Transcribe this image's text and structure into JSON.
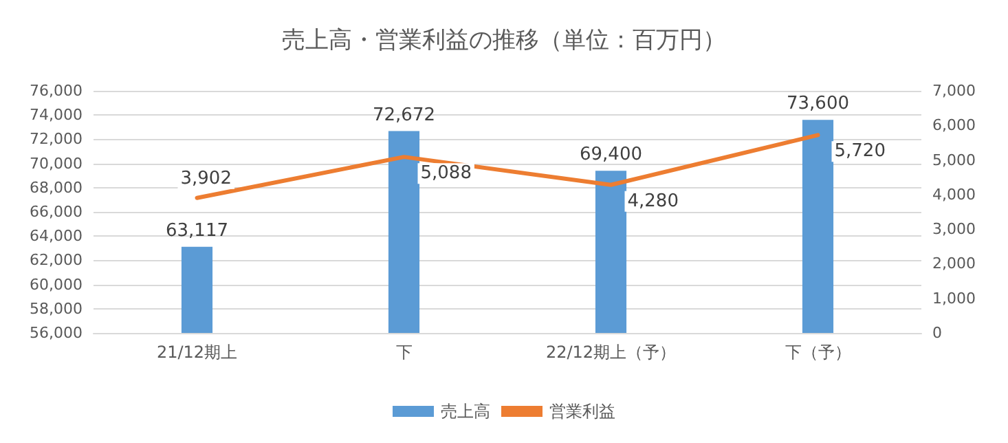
{
  "chart_data": {
    "type": "bar",
    "title": "売上高・営業利益の推移（単位：百万円）",
    "categories": [
      "21/12期上",
      "下",
      "22/12期上（予）",
      "下（予）"
    ],
    "series": [
      {
        "name": "売上高",
        "type": "bar",
        "color": "#5b9bd5",
        "values": [
          63117,
          72672,
          69400,
          73600
        ],
        "value_labels": [
          "63,117",
          "72,672",
          "69,400",
          "73,600"
        ]
      },
      {
        "name": "営業利益",
        "type": "line",
        "axis": "y2",
        "color": "#ed7d31",
        "values": [
          3902,
          5088,
          4280,
          5720
        ],
        "value_labels": [
          "3,902",
          "5,088",
          "4,280",
          "5,720"
        ]
      }
    ],
    "ylim": [
      56000,
      76000
    ],
    "yticks": [
      {
        "value": 56000,
        "label": "56,000"
      },
      {
        "value": 58000,
        "label": "58,000"
      },
      {
        "value": 60000,
        "label": "60,000"
      },
      {
        "value": 62000,
        "label": "62,000"
      },
      {
        "value": 64000,
        "label": "64,000"
      },
      {
        "value": 66000,
        "label": "66,000"
      },
      {
        "value": 68000,
        "label": "68,000"
      },
      {
        "value": 70000,
        "label": "70,000"
      },
      {
        "value": 72000,
        "label": "72,000"
      },
      {
        "value": 74000,
        "label": "74,000"
      },
      {
        "value": 76000,
        "label": "76,000"
      }
    ],
    "y2lim": [
      0,
      7000
    ],
    "y2ticks": [
      0,
      {
        "value": 1000,
        "label": "1,000"
      },
      {
        "value": 2000,
        "label": "2,000"
      },
      {
        "value": 3000,
        "label": "3,000"
      },
      {
        "value": 4000,
        "label": "4,000"
      },
      {
        "value": 5000,
        "label": "5,000"
      },
      {
        "value": 6000,
        "label": "6,000"
      },
      {
        "value": 7000,
        "label": "7,000"
      }
    ],
    "grid": "y",
    "legend": "bottom",
    "marker": "none",
    "line_style": "solid"
  }
}
